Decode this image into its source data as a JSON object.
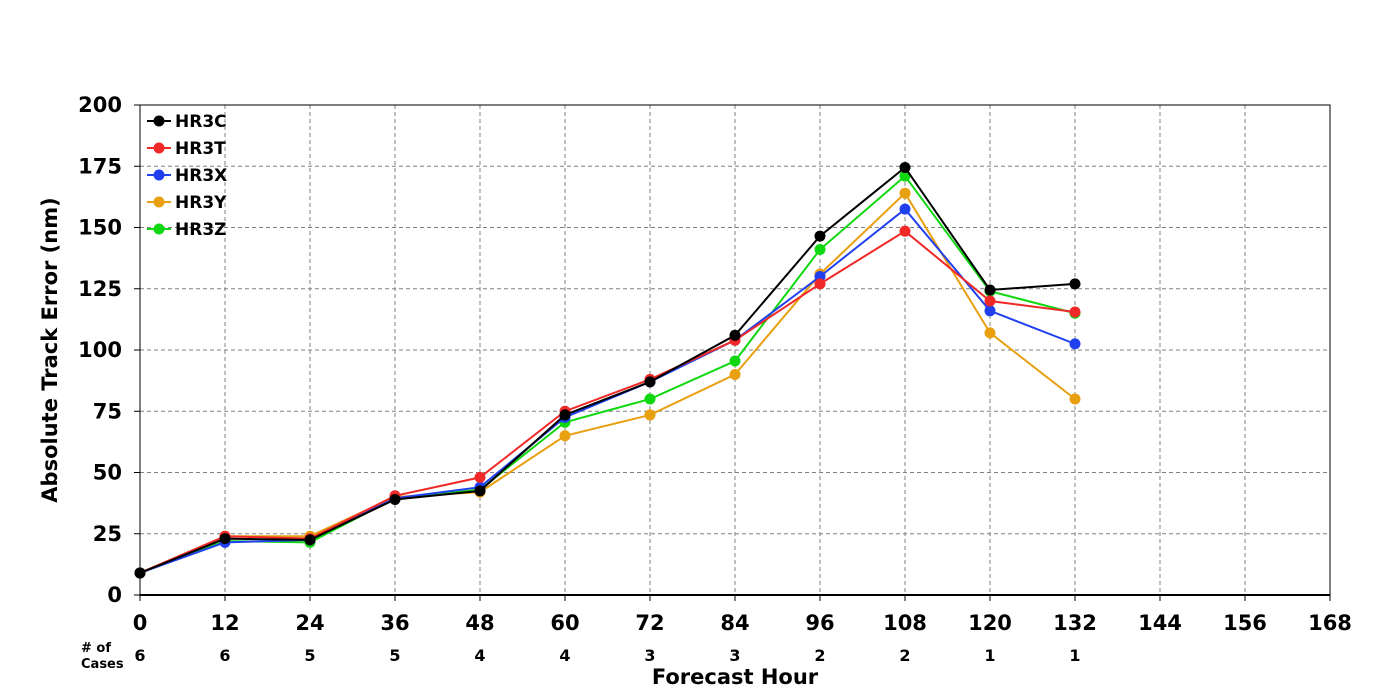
{
  "chart_data": {
    "type": "line",
    "xlabel": "Forecast Hour",
    "ylabel": "Absolute Track Error (nm)",
    "xlim": [
      0,
      168
    ],
    "ylim": [
      0,
      200
    ],
    "x_ticks": [
      "0",
      "12",
      "24",
      "36",
      "48",
      "60",
      "72",
      "84",
      "96",
      "108",
      "120",
      "132",
      "144",
      "156",
      "168"
    ],
    "y_ticks": [
      "0",
      "25",
      "50",
      "75",
      "100",
      "125",
      "150",
      "175",
      "200"
    ],
    "grid": true,
    "legend_position": "top-left",
    "cases_label_line1": "# of",
    "cases_label_line2": "Cases",
    "cases": [
      {
        "x": 0,
        "n": "6"
      },
      {
        "x": 12,
        "n": "6"
      },
      {
        "x": 24,
        "n": "5"
      },
      {
        "x": 36,
        "n": "5"
      },
      {
        "x": 48,
        "n": "4"
      },
      {
        "x": 60,
        "n": "4"
      },
      {
        "x": 72,
        "n": "3"
      },
      {
        "x": 84,
        "n": "3"
      },
      {
        "x": 96,
        "n": "2"
      },
      {
        "x": 108,
        "n": "2"
      },
      {
        "x": 120,
        "n": "1"
      },
      {
        "x": 132,
        "n": "1"
      }
    ],
    "x": [
      0,
      12,
      24,
      36,
      48,
      60,
      72,
      84,
      96,
      108,
      120,
      132
    ],
    "series": [
      {
        "name": "HR3Y",
        "color": "#e8a010",
        "values": [
          9,
          24,
          24,
          40,
          42,
          65,
          73.5,
          90,
          131,
          164,
          107,
          80
        ]
      },
      {
        "name": "HR3Z",
        "color": "#10d810",
        "values": [
          9,
          22,
          21.5,
          39.5,
          43,
          70.5,
          80,
          95.5,
          141,
          171,
          124,
          115
        ]
      },
      {
        "name": "HR3X",
        "color": "#2040f0",
        "values": [
          9,
          21.5,
          22.5,
          39.5,
          44,
          72.5,
          87,
          104,
          130,
          157.5,
          116,
          102.5
        ]
      },
      {
        "name": "HR3T",
        "color": "#f02828",
        "values": [
          9,
          24,
          23,
          40.5,
          48,
          75,
          88,
          104,
          127,
          148.5,
          120,
          115.5
        ]
      },
      {
        "name": "HR3C",
        "color": "#000000",
        "values": [
          9,
          23,
          22.5,
          39,
          42.5,
          73.5,
          87,
          106,
          146.5,
          174.5,
          124.5,
          127
        ]
      }
    ],
    "legend_order": [
      "HR3C",
      "HR3T",
      "HR3X",
      "HR3Y",
      "HR3Z"
    ]
  }
}
